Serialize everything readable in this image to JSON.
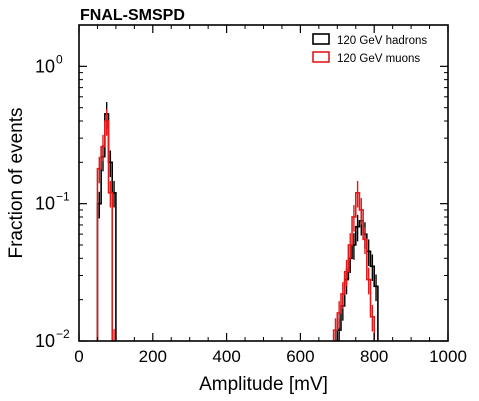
{
  "chart_data": {
    "type": "step-histogram",
    "title": "FNAL-SMSPD",
    "xlabel": "Amplitude [mV]",
    "ylabel": "Fraction of events",
    "xlim": [
      0,
      1000
    ],
    "ylim": [
      0.01,
      2
    ],
    "yscale": "log",
    "x_ticks": [
      0,
      200,
      400,
      600,
      800,
      1000
    ],
    "x_tick_labels": [
      "0",
      "200",
      "400",
      "600",
      "800",
      "1000"
    ],
    "y_ticks": [
      1,
      0.1,
      0.01
    ],
    "y_tick_labels": [
      {
        "base": "10",
        "exp": "0"
      },
      {
        "base": "10",
        "exp": "−1"
      },
      {
        "base": "10",
        "exp": "−2"
      }
    ],
    "legend_position": "top-right",
    "series": [
      {
        "name": "120 GeV hadrons",
        "color": "#000000",
        "bins": [
          {
            "x0": 50,
            "x1": 60,
            "y": 0.1
          },
          {
            "x0": 60,
            "x1": 70,
            "y": 0.22
          },
          {
            "x0": 70,
            "x1": 80,
            "y": 0.45
          },
          {
            "x0": 80,
            "x1": 90,
            "y": 0.2
          },
          {
            "x0": 90,
            "x1": 100,
            "y": 0.12
          },
          {
            "x0": 700,
            "x1": 710,
            "y": 0.012
          },
          {
            "x0": 710,
            "x1": 720,
            "y": 0.018
          },
          {
            "x0": 720,
            "x1": 730,
            "y": 0.028
          },
          {
            "x0": 730,
            "x1": 740,
            "y": 0.04
          },
          {
            "x0": 740,
            "x1": 750,
            "y": 0.05
          },
          {
            "x0": 750,
            "x1": 760,
            "y": 0.068
          },
          {
            "x0": 760,
            "x1": 770,
            "y": 0.075
          },
          {
            "x0": 770,
            "x1": 780,
            "y": 0.06
          },
          {
            "x0": 780,
            "x1": 790,
            "y": 0.045
          },
          {
            "x0": 790,
            "x1": 800,
            "y": 0.035
          },
          {
            "x0": 800,
            "x1": 810,
            "y": 0.025
          }
        ]
      },
      {
        "name": "120 GeV muons",
        "color": "#e31a1c",
        "bins": [
          {
            "x0": 50,
            "x1": 60,
            "y": 0.18
          },
          {
            "x0": 60,
            "x1": 70,
            "y": 0.26
          },
          {
            "x0": 70,
            "x1": 80,
            "y": 0.4
          },
          {
            "x0": 80,
            "x1": 90,
            "y": 0.12
          },
          {
            "x0": 90,
            "x1": 100,
            "y": 0.01
          },
          {
            "x0": 690,
            "x1": 700,
            "y": 0.012
          },
          {
            "x0": 700,
            "x1": 710,
            "y": 0.016
          },
          {
            "x0": 710,
            "x1": 720,
            "y": 0.022
          },
          {
            "x0": 720,
            "x1": 730,
            "y": 0.032
          },
          {
            "x0": 730,
            "x1": 740,
            "y": 0.05
          },
          {
            "x0": 740,
            "x1": 750,
            "y": 0.08
          },
          {
            "x0": 750,
            "x1": 760,
            "y": 0.12
          },
          {
            "x0": 760,
            "x1": 770,
            "y": 0.09
          },
          {
            "x0": 770,
            "x1": 780,
            "y": 0.055
          },
          {
            "x0": 780,
            "x1": 790,
            "y": 0.028
          },
          {
            "x0": 790,
            "x1": 800,
            "y": 0.015
          }
        ]
      }
    ]
  }
}
